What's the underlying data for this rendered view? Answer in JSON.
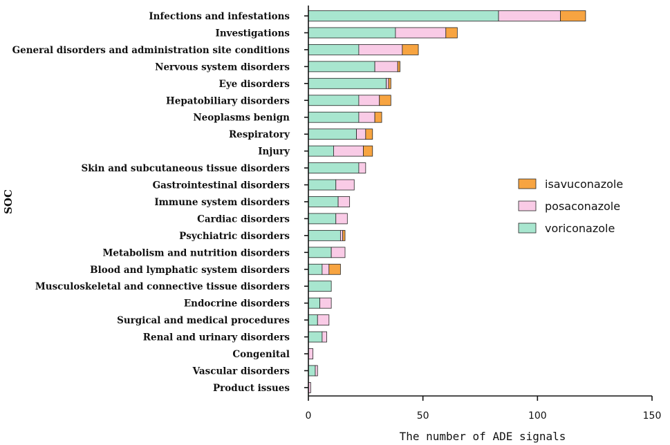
{
  "chart_data": {
    "type": "bar",
    "orientation": "horizontal",
    "stacked": true,
    "title": "",
    "xlabel": "The number of ADE signals",
    "ylabel": "SOC",
    "xlim": [
      0,
      150
    ],
    "xticks": [
      0,
      50,
      100,
      150
    ],
    "grid": false,
    "legend_position": "right",
    "categories": [
      "Infections and infestations",
      "Investigations",
      "General disorders and administration site conditions",
      "Nervous system disorders",
      "Eye disorders",
      "Hepatobiliary disorders",
      "Neoplasms benign",
      "Respiratory",
      "Injury",
      "Skin and subcutaneous tissue disorders",
      "Gastrointestinal disorders",
      "Immune system disorders",
      "Cardiac disorders",
      "Psychiatric disorders",
      "Metabolism and nutrition disorders",
      "Blood and lymphatic system disorders",
      "Musculoskeletal and connective tissue disorders",
      "Endocrine disorders",
      "Surgical and medical procedures",
      "Renal and urinary disorders",
      "Congenital",
      "Vascular disorders",
      "Product issues"
    ],
    "series": [
      {
        "name": "voriconazole",
        "color": "#A8E6CF",
        "values": [
          83,
          38,
          22,
          29,
          34,
          22,
          22,
          21,
          11,
          22,
          12,
          13,
          12,
          14,
          10,
          6,
          10,
          5,
          4,
          6,
          0,
          3,
          0
        ]
      },
      {
        "name": "posaconazole",
        "color": "#F9CBE6",
        "values": [
          27,
          22,
          19,
          10,
          1,
          9,
          7,
          4,
          13,
          3,
          8,
          5,
          5,
          1,
          6,
          3,
          0,
          5,
          5,
          2,
          2,
          1,
          1
        ]
      },
      {
        "name": "isavuconazole",
        "color": "#F7A441",
        "values": [
          11,
          5,
          7,
          1,
          1,
          5,
          3,
          3,
          4,
          0,
          0,
          0,
          0,
          1,
          0,
          5,
          0,
          0,
          0,
          0,
          0,
          0,
          0
        ]
      }
    ],
    "legend_order": [
      "isavuconazole",
      "posaconazole",
      "voriconazole"
    ]
  }
}
